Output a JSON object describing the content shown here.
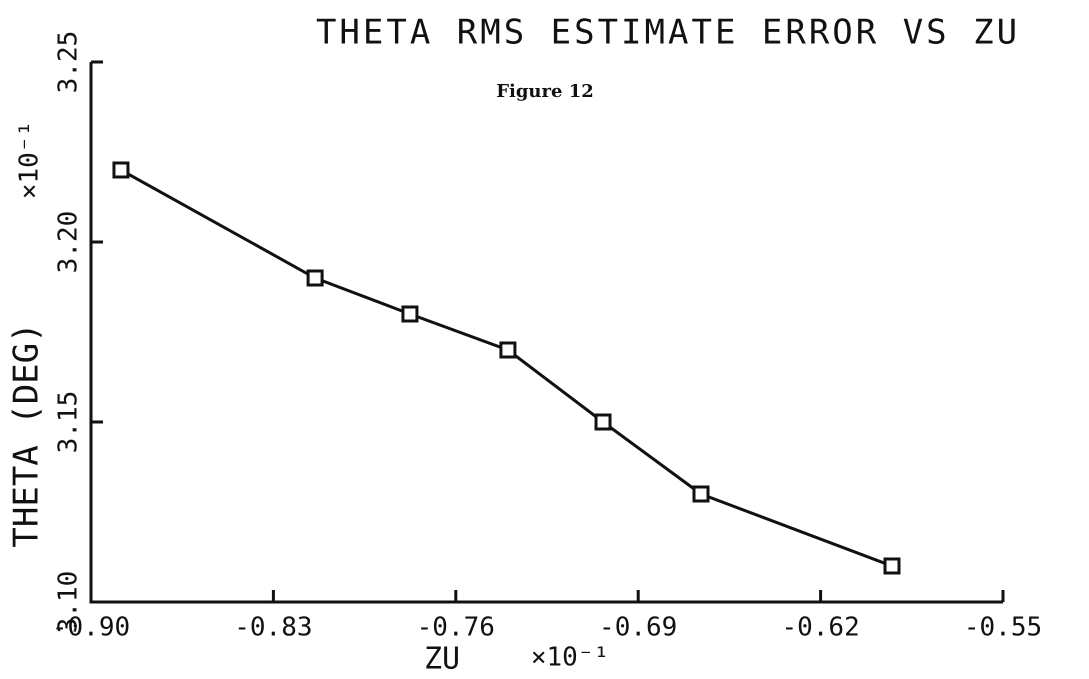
{
  "chart_data": {
    "type": "line",
    "title": "THETA RMS ESTIMATE ERROR VS ZU",
    "subtitle": "Figure 12",
    "x_label": "ZU",
    "x_scale": "×10⁻¹",
    "y_label": "THETA (DEG)",
    "y_scale": "×10⁻¹",
    "x": [
      -0.8885,
      -0.814,
      -0.7776,
      -0.74,
      -0.7035,
      -0.6659,
      -0.5926
    ],
    "series": [
      {
        "color": "#111111",
        "values": [
          3.22,
          3.19,
          3.18,
          3.17,
          3.15,
          3.13,
          3.11
        ]
      }
    ],
    "xlim": [
      -0.9,
      -0.55
    ],
    "xticks": [
      {
        "value": -0.9,
        "label": "-0.90"
      },
      -0.83,
      -0.76,
      -0.69,
      -0.62,
      -0.55
    ],
    "ylim": [
      3.1,
      3.25
    ],
    "yticks": [
      {
        "value": 3.1,
        "label": "3.10"
      },
      3.15,
      {
        "value": 3.2,
        "label": "3.20"
      },
      3.25
    ],
    "markers": "square",
    "grid": false
  }
}
